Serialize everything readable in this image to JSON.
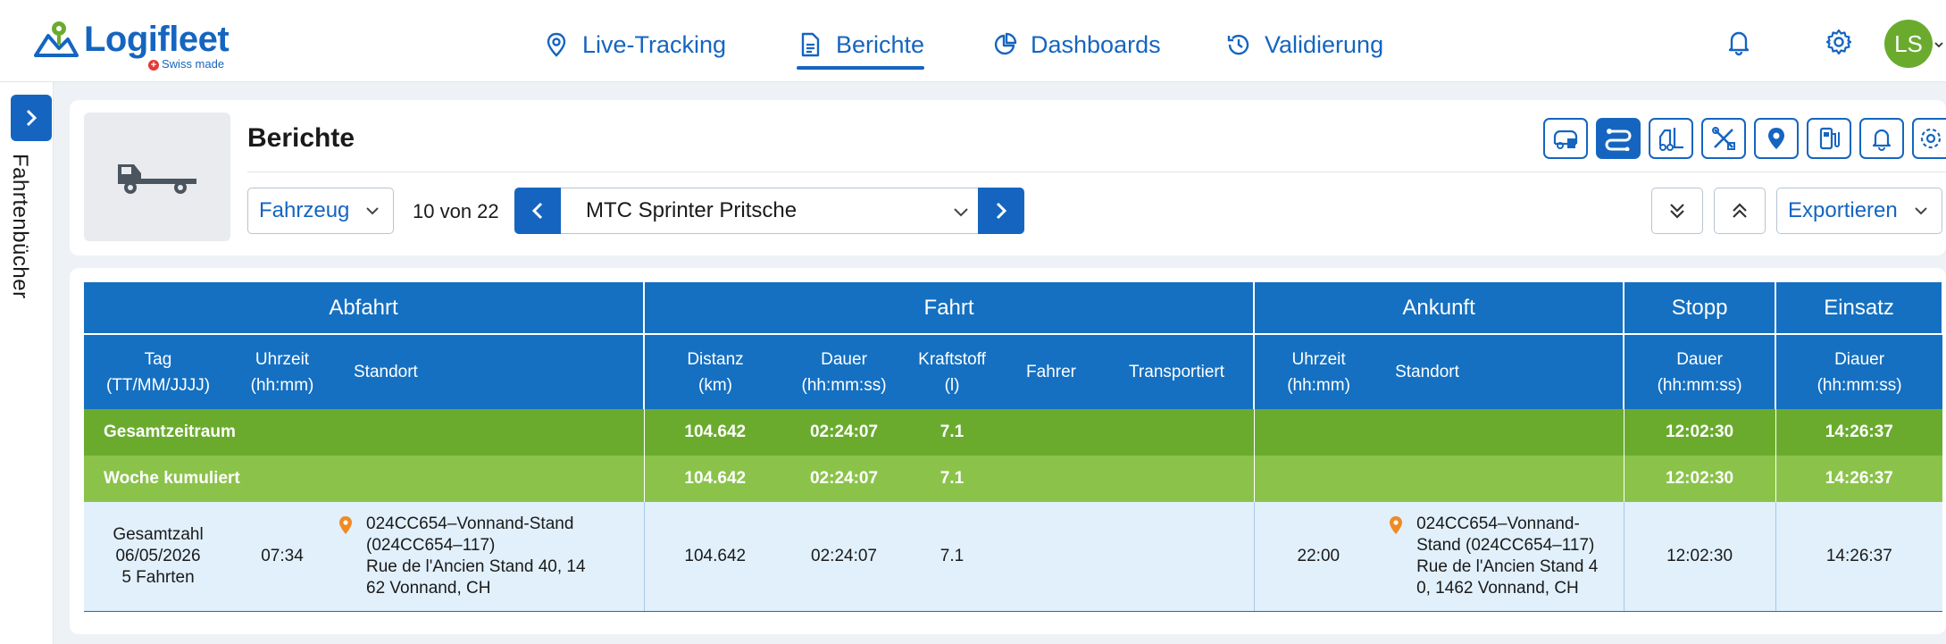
{
  "app": {
    "logo_text": "Logifleet",
    "logo_sub": "Swiss made",
    "avatar_initials": "LS",
    "accent": "#1565c0",
    "green_dark": "#6aab2e",
    "green_light": "#8bc34a"
  },
  "nav": {
    "items": [
      {
        "label": "Live-Tracking",
        "icon": "map-pin-icon"
      },
      {
        "label": "Berichte",
        "icon": "document-icon"
      },
      {
        "label": "Dashboards",
        "icon": "pie-chart-icon"
      },
      {
        "label": "Validierung",
        "icon": "history-icon"
      }
    ],
    "active": "Berichte"
  },
  "sidebar": {
    "label": "Fahrtenbücher"
  },
  "header": {
    "title": "Berichte",
    "type_select": "Fahrzeug",
    "counter": "10 von 22",
    "vehicle": "MTC Sprinter Pritsche",
    "export_label": "Exportieren",
    "tools": [
      "vehicle-report-icon",
      "route-icon",
      "forklift-icon",
      "tools-icon",
      "location-icon",
      "fuel-icon",
      "alarm-icon",
      "settings-icon"
    ]
  },
  "table": {
    "groups": [
      "Abfahrt",
      "Fahrt",
      "Ankunft",
      "Stopp",
      "Einsatz"
    ],
    "columns": {
      "tag": [
        "Tag",
        "(TT/MM/JJJJ)"
      ],
      "uhrzeit": [
        "Uhrzeit",
        "(hh:mm)"
      ],
      "standort": "Standort",
      "distanz": [
        "Distanz",
        "(km)"
      ],
      "dauer": [
        "Dauer",
        "(hh:mm:ss)"
      ],
      "kraftstoff": [
        "Kraftstoff",
        "(l)"
      ],
      "fahrer": "Fahrer",
      "transportiert": "Transportiert",
      "ank_uhrzeit": [
        "Uhrzeit",
        "(hh:mm)"
      ],
      "ank_standort": "Standort",
      "stopp_dauer": [
        "Dauer",
        "(hh:mm:ss)"
      ],
      "einsatz_dauer": [
        "Diauer",
        "(hh:mm:ss)"
      ]
    },
    "summary_rows": [
      {
        "label": "Gesamtzeitraum",
        "distanz": "104.642",
        "dauer": "02:24:07",
        "kraftstoff": "7.1",
        "stopp": "12:02:30",
        "einsatz": "14:26:37"
      },
      {
        "label": "Woche kumuliert",
        "distanz": "104.642",
        "dauer": "02:24:07",
        "kraftstoff": "7.1",
        "stopp": "12:02:30",
        "einsatz": "14:26:37"
      }
    ],
    "data_row": {
      "tag_lines": [
        "Gesamtzahl",
        "06/05/2026",
        "5 Fahrten"
      ],
      "uhrzeit": "07:34",
      "standort_lines": [
        "024CC654–Vonnand-Stand",
        "(024CC654–117)",
        "Rue de l'Ancien Stand 40, 14",
        "62 Vonnand, CH"
      ],
      "distanz": "104.642",
      "dauer": "02:24:07",
      "kraftstoff": "7.1",
      "fahrer": "",
      "transportiert": "",
      "ank_uhrzeit": "22:00",
      "ank_standort_lines": [
        "024CC654–Vonnand-",
        "Stand (024CC654–117)",
        "Rue de l'Ancien Stand 4",
        "0, 1462 Vonnand, CH"
      ],
      "stopp": "12:02:30",
      "einsatz": "14:26:37"
    }
  }
}
